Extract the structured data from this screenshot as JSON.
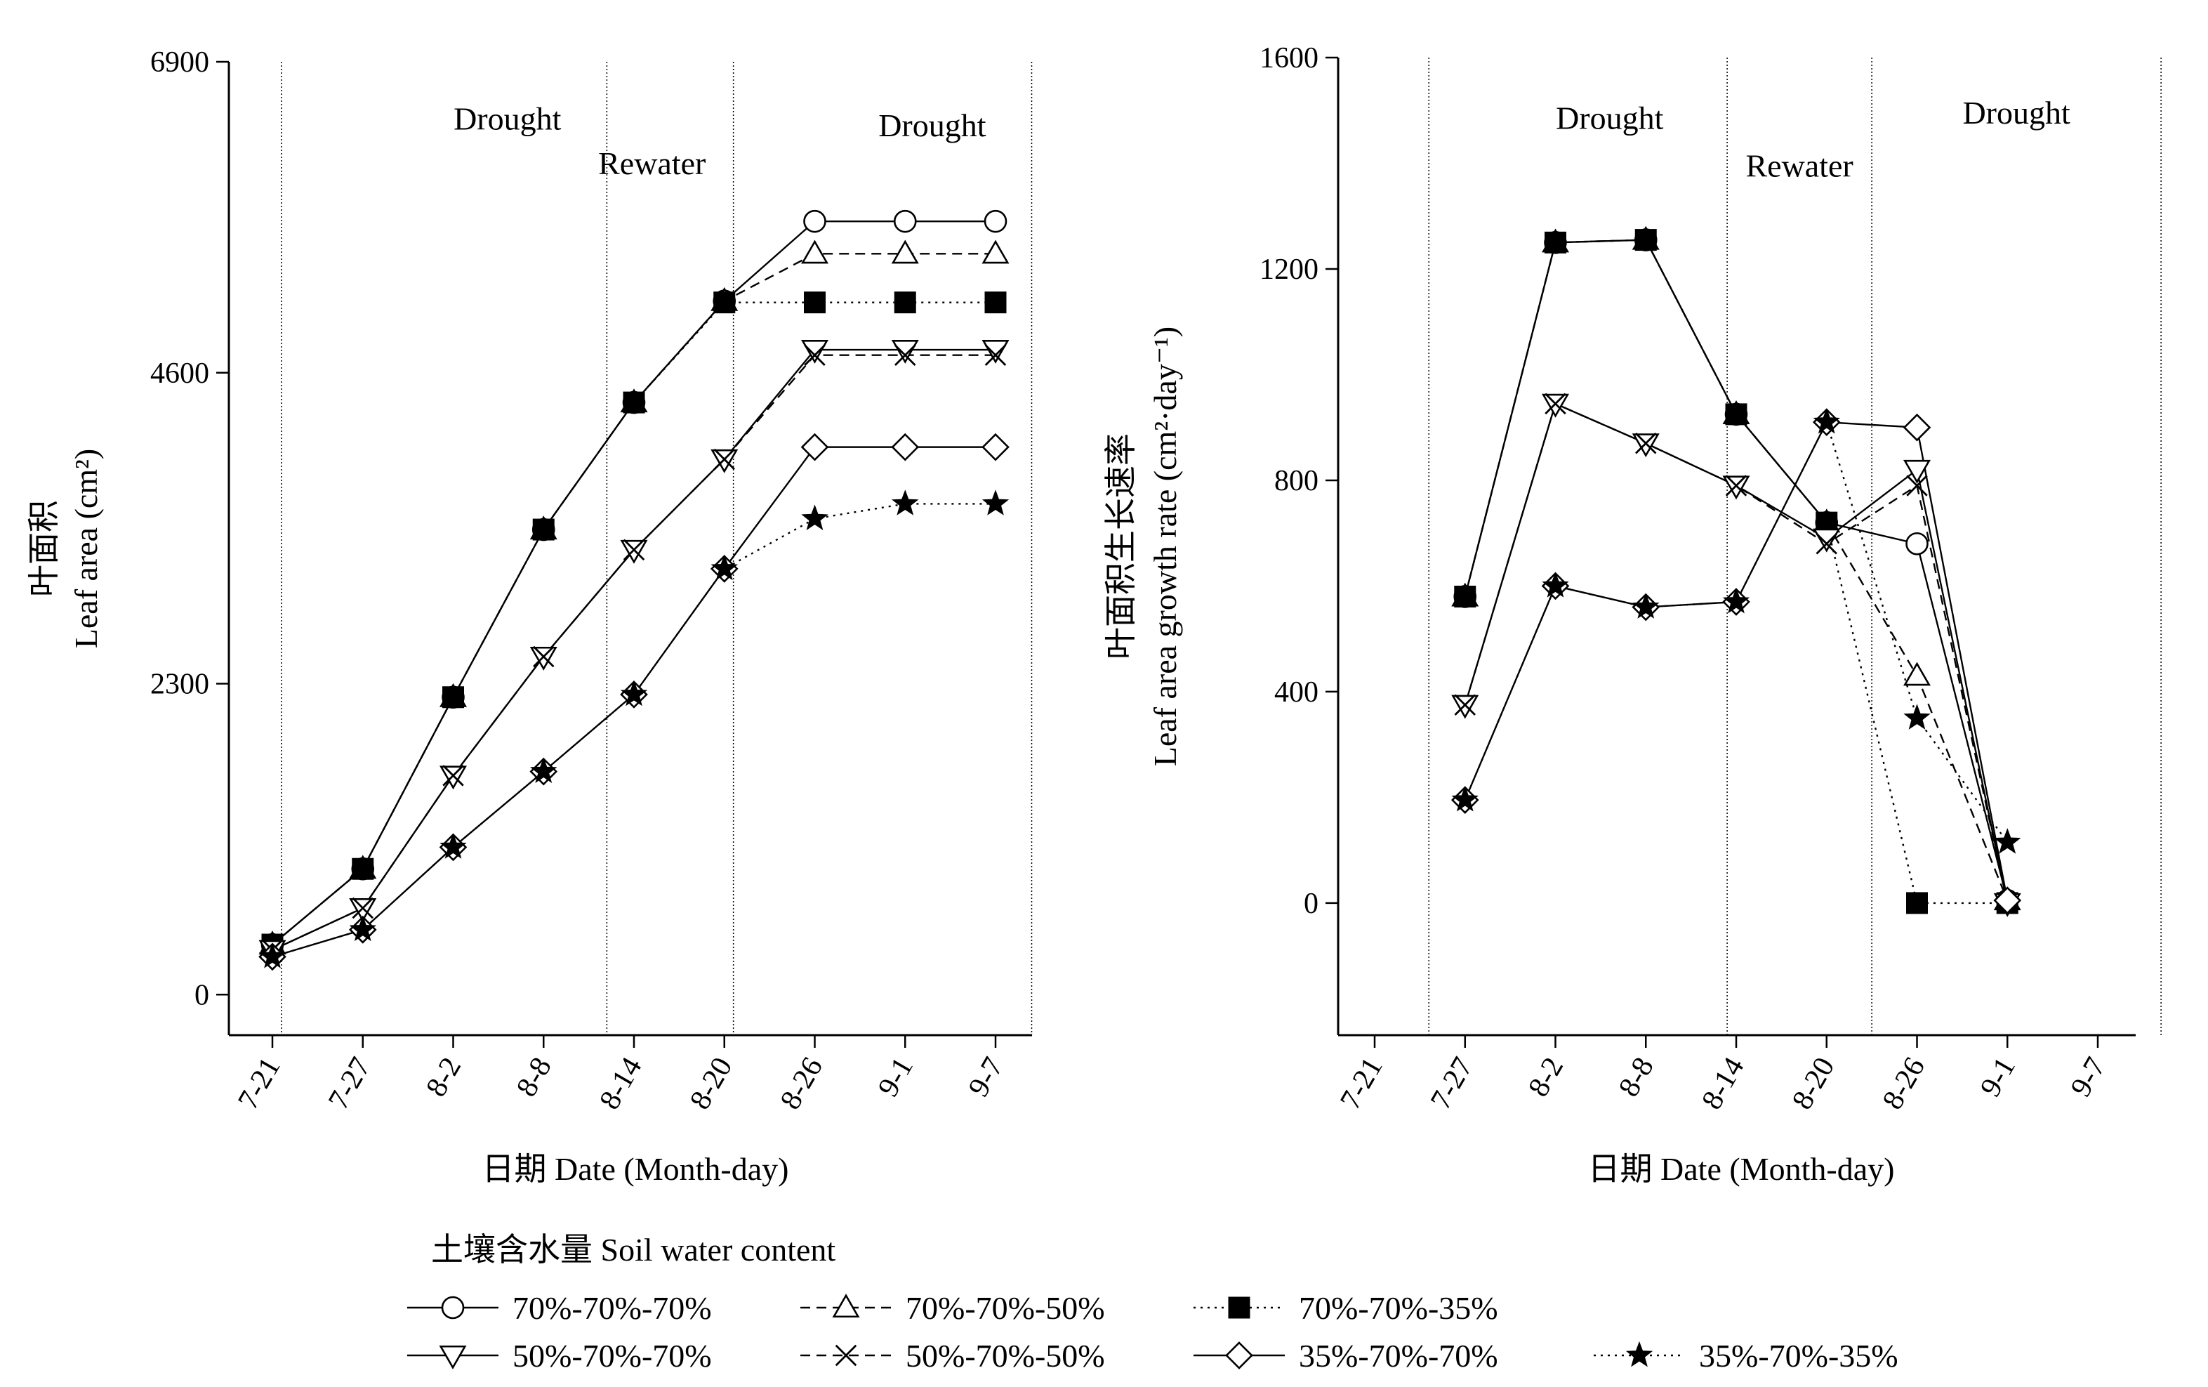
{
  "chart_data": [
    {
      "type": "line",
      "ylabel_cn": "叶面积",
      "ylabel": "Leaf area (cm²)",
      "xlabel": "日期 Date (Month-day)",
      "categories": [
        "7-21",
        "7-27",
        "8-2",
        "8-8",
        "8-14",
        "8-20",
        "8-26",
        "9-1",
        "9-7"
      ],
      "y_ticks": [
        "0",
        "2300",
        "4600",
        "6900"
      ],
      "ylim": [
        -300,
        6900
      ],
      "phase_labels": [
        {
          "text": "Drought",
          "x": 2.6,
          "y": 6400
        },
        {
          "text": "Rewater",
          "x": 4.2,
          "y": 6070
        },
        {
          "text": "Drought",
          "x": 7.3,
          "y": 6350
        }
      ],
      "phase_lines": [
        0.1,
        3.7,
        5.1,
        8.4
      ],
      "series": [
        {
          "name": "70%-70%-70%",
          "values": [
            370,
            930,
            2200,
            3440,
            4380,
            5130,
            5720,
            5720,
            5720
          ]
        },
        {
          "name": "70%-70%-50%",
          "values": [
            370,
            930,
            2200,
            3440,
            4380,
            5130,
            5480,
            5480,
            5480
          ]
        },
        {
          "name": "70%-70%-35%",
          "values": [
            370,
            930,
            2200,
            3440,
            4380,
            5120,
            5120,
            5120,
            5120
          ]
        },
        {
          "name": "50%-70%-70%",
          "values": [
            330,
            640,
            1620,
            2500,
            3290,
            3960,
            4770,
            4770,
            4770
          ]
        },
        {
          "name": "50%-70%-50%",
          "values": [
            330,
            640,
            1620,
            2500,
            3290,
            3960,
            4730,
            4730,
            4730
          ]
        },
        {
          "name": "35%-70%-70%",
          "values": [
            280,
            480,
            1090,
            1650,
            2220,
            3150,
            4050,
            4050,
            4050
          ]
        },
        {
          "name": "35%-70%-35%",
          "values": [
            280,
            480,
            1090,
            1650,
            2220,
            3150,
            3520,
            3630,
            3630
          ]
        }
      ]
    },
    {
      "type": "line",
      "ylabel_cn": "叶面积生长速率",
      "ylabel": "Leaf area growth rate (cm²·day⁻¹)",
      "xlabel": "日期 Date (Month-day)",
      "categories": [
        "7-21",
        "7-27",
        "8-2",
        "8-8",
        "8-14",
        "8-20",
        "8-26",
        "9-1",
        "9-7"
      ],
      "y_ticks": [
        "0",
        "400",
        "800",
        "1200",
        "1600"
      ],
      "ylim": [
        -250,
        1600
      ],
      "phase_labels": [
        {
          "text": "Drought",
          "x": 2.6,
          "y": 1465
        },
        {
          "text": "Rewater",
          "x": 4.7,
          "y": 1375
        },
        {
          "text": "Drought",
          "x": 7.1,
          "y": 1475
        }
      ],
      "phase_lines": [
        0.6,
        3.9,
        5.5,
        8.7
      ],
      "series": [
        {
          "name": "70%-70%-70%",
          "values": [
            null,
            580,
            1250,
            1255,
            925,
            720,
            680,
            5,
            null
          ]
        },
        {
          "name": "70%-70%-50%",
          "values": [
            null,
            580,
            1250,
            1255,
            925,
            720,
            430,
            5,
            null
          ]
        },
        {
          "name": "70%-70%-35%",
          "values": [
            null,
            580,
            1250,
            1255,
            925,
            720,
            0,
            0,
            null
          ]
        },
        {
          "name": "50%-70%-70%",
          "values": [
            null,
            375,
            945,
            870,
            790,
            690,
            820,
            0,
            null
          ]
        },
        {
          "name": "50%-70%-50%",
          "values": [
            null,
            375,
            945,
            870,
            790,
            680,
            790,
            0,
            null
          ]
        },
        {
          "name": "35%-70%-70%",
          "values": [
            null,
            195,
            600,
            560,
            570,
            910,
            900,
            5,
            null
          ]
        },
        {
          "name": "35%-70%-35%",
          "values": [
            null,
            195,
            600,
            560,
            570,
            910,
            350,
            115,
            null
          ]
        }
      ]
    }
  ],
  "legend": {
    "title": "土壤含水量 Soil water content",
    "position": "bottom"
  },
  "series_styles": [
    {
      "marker": "circle-open",
      "dash": "solid"
    },
    {
      "marker": "triangle-up-open",
      "dash": "dashed"
    },
    {
      "marker": "square-filled",
      "dash": "dotted"
    },
    {
      "marker": "triangle-down-open",
      "dash": "solid"
    },
    {
      "marker": "cross",
      "dash": "dashed"
    },
    {
      "marker": "diamond-open",
      "dash": "solid"
    },
    {
      "marker": "star-filled",
      "dash": "dotted"
    }
  ]
}
